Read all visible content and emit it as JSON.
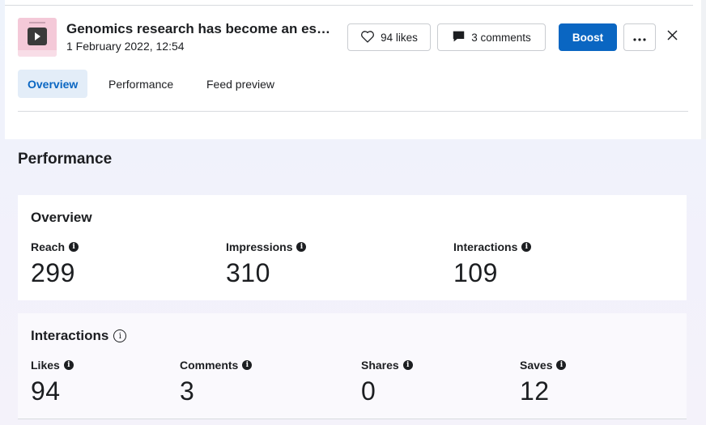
{
  "post": {
    "title": "Genomics research has become an es…",
    "date": "1 February 2022, 12:54"
  },
  "actions": {
    "likes_label": "94 likes",
    "comments_label": "3 comments",
    "boost_label": "Boost",
    "more_label": "···"
  },
  "tabs": [
    {
      "label": "Overview",
      "active": true
    },
    {
      "label": "Performance",
      "active": false
    },
    {
      "label": "Feed preview",
      "active": false
    }
  ],
  "section_title": "Performance",
  "overview": {
    "title": "Overview",
    "metrics": [
      {
        "label": "Reach",
        "value": "299"
      },
      {
        "label": "Impressions",
        "value": "310"
      },
      {
        "label": "Interactions",
        "value": "109"
      }
    ]
  },
  "interactions": {
    "title": "Interactions",
    "metrics": [
      {
        "label": "Likes",
        "value": "94"
      },
      {
        "label": "Comments",
        "value": "3"
      },
      {
        "label": "Shares",
        "value": "0"
      },
      {
        "label": "Saves",
        "value": "12"
      }
    ]
  },
  "icons": {
    "likes": "heart-icon",
    "comments": "comment-bubble-icon",
    "more": "more-dots-icon",
    "close": "close-icon",
    "info": "info-icon"
  },
  "colors": {
    "accent": "#0a66c2",
    "active_tab_bg": "#e3edf8"
  }
}
